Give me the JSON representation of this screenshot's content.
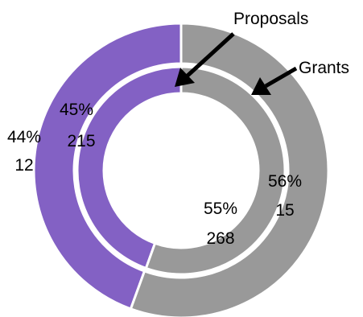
{
  "chart_data": {
    "type": "pie",
    "variant": "nested-donut",
    "colors": {
      "first_slice": "#8361c4",
      "second_slice": "#999999",
      "separator": "#ffffff",
      "arrow": "#000000"
    },
    "rings": [
      {
        "ring": "outer",
        "callout": "Grants",
        "slices": [
          {
            "percent_label": "44%",
            "count_label": "12",
            "value": 12
          },
          {
            "percent_label": "56%",
            "count_label": "15",
            "value": 15
          }
        ]
      },
      {
        "ring": "inner",
        "callout": "Proposals",
        "slices": [
          {
            "percent_label": "45%",
            "count_label": "215",
            "value": 215
          },
          {
            "percent_label": "55%",
            "count_label": "268",
            "value": 268
          }
        ]
      }
    ]
  }
}
